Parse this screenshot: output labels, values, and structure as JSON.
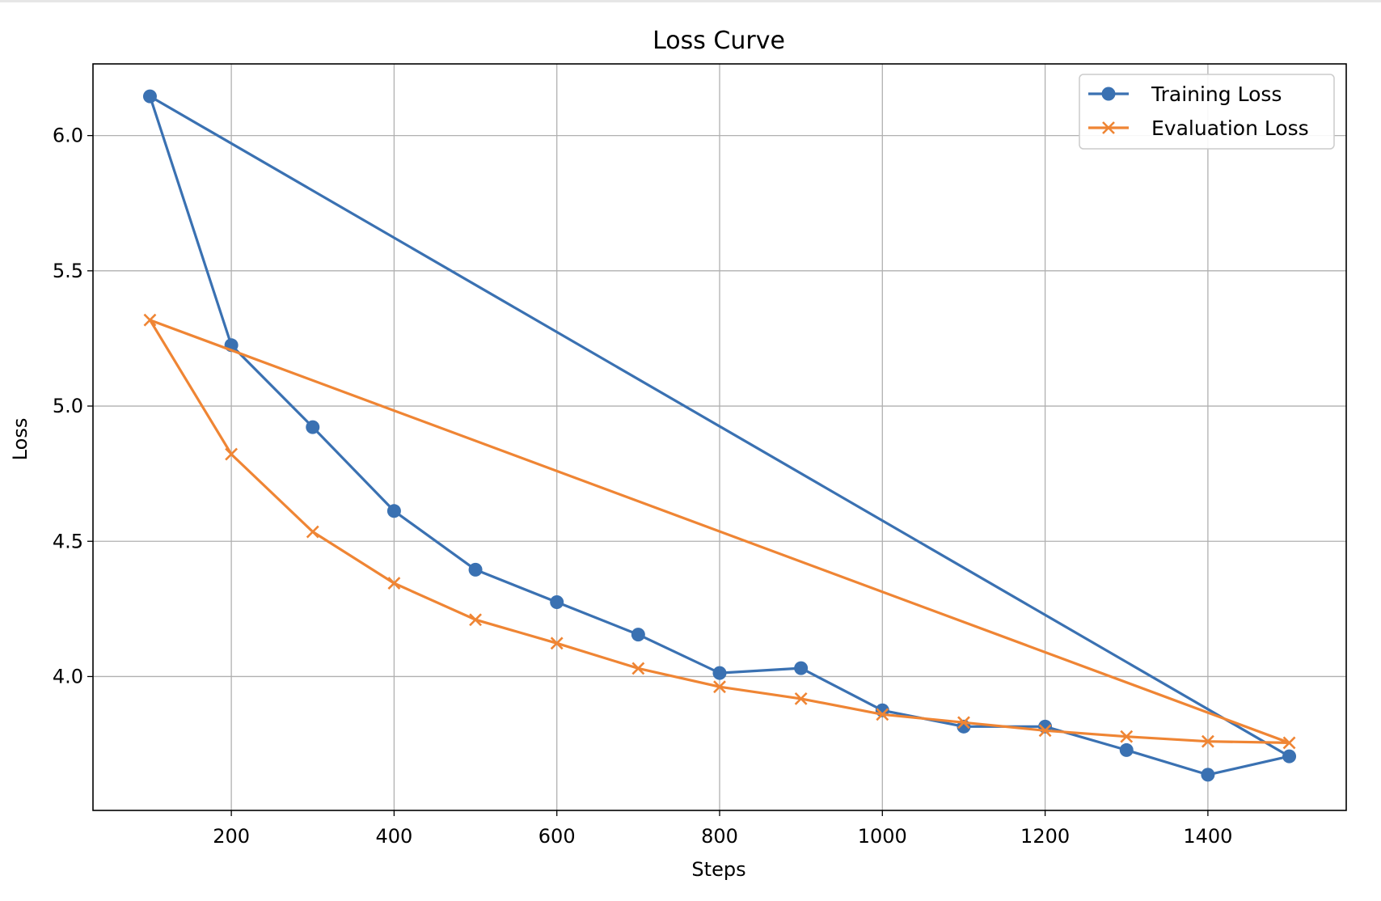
{
  "chart_data": {
    "type": "line",
    "title": "Loss Curve",
    "xlabel": "Steps",
    "ylabel": "Loss",
    "xlim": [
      30,
      1570
    ],
    "ylim": [
      3.505,
      6.265
    ],
    "xticks": [
      200,
      400,
      600,
      800,
      1000,
      1200,
      1400
    ],
    "yticks": [
      4.0,
      4.5,
      5.0,
      5.5,
      6.0
    ],
    "grid": true,
    "legend_position": "top-right",
    "series": [
      {
        "name": "Training Loss",
        "color": "#3a71b2",
        "marker": "circle",
        "points": [
          [
            100,
            6.145
          ],
          [
            200,
            5.225
          ],
          [
            300,
            4.922
          ],
          [
            400,
            4.612
          ],
          [
            500,
            4.395
          ],
          [
            600,
            4.275
          ],
          [
            700,
            4.155
          ],
          [
            800,
            4.013
          ],
          [
            900,
            4.031
          ],
          [
            1000,
            3.875
          ],
          [
            1100,
            3.815
          ],
          [
            1200,
            3.815
          ],
          [
            1300,
            3.728
          ],
          [
            1400,
            3.637
          ],
          [
            1500,
            3.705
          ],
          [
            100,
            6.145
          ]
        ]
      },
      {
        "name": "Evaluation Loss",
        "color": "#ef8534",
        "marker": "x",
        "points": [
          [
            100,
            5.318
          ],
          [
            200,
            4.822
          ],
          [
            300,
            4.535
          ],
          [
            400,
            4.345
          ],
          [
            500,
            4.21
          ],
          [
            600,
            4.123
          ],
          [
            700,
            4.03
          ],
          [
            800,
            3.962
          ],
          [
            900,
            3.918
          ],
          [
            1000,
            3.86
          ],
          [
            1100,
            3.83
          ],
          [
            1200,
            3.8
          ],
          [
            1300,
            3.778
          ],
          [
            1400,
            3.76
          ],
          [
            1500,
            3.755
          ],
          [
            100,
            5.318
          ]
        ]
      }
    ]
  }
}
